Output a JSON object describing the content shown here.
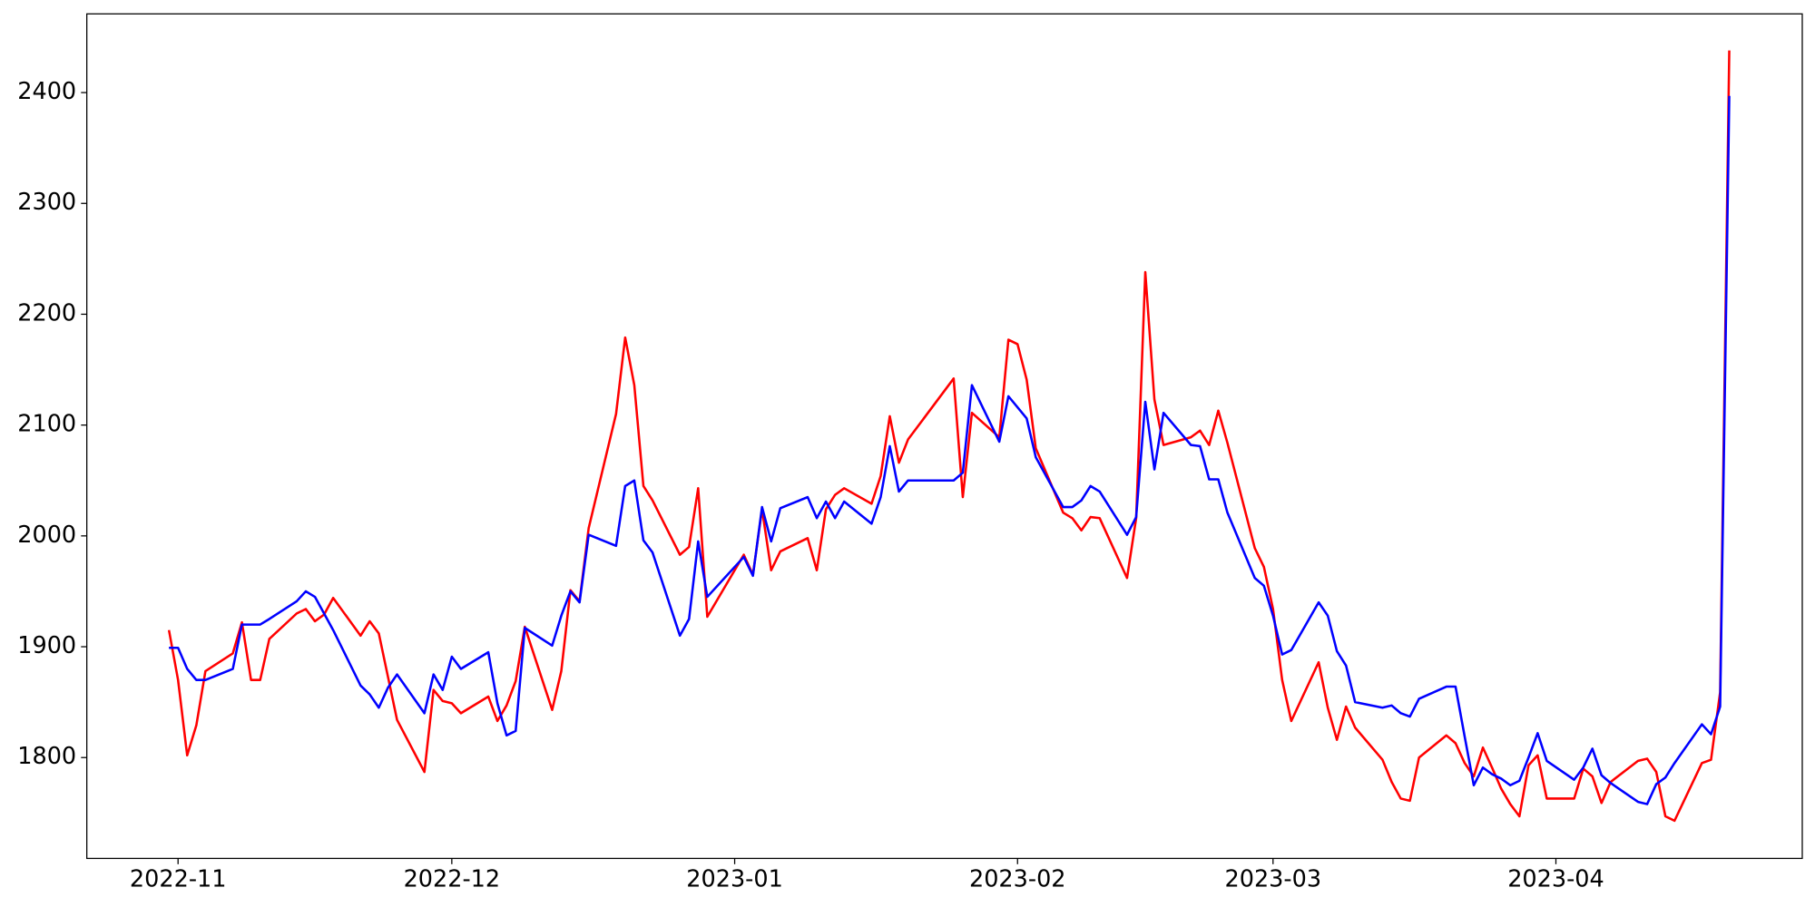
{
  "chart_data": {
    "type": "line",
    "x": [
      "2022-10-31",
      "2022-11-01",
      "2022-11-02",
      "2022-11-03",
      "2022-11-04",
      "2022-11-07",
      "2022-11-08",
      "2022-11-09",
      "2022-11-10",
      "2022-11-11",
      "2022-11-14",
      "2022-11-15",
      "2022-11-16",
      "2022-11-17",
      "2022-11-18",
      "2022-11-21",
      "2022-11-22",
      "2022-11-23",
      "2022-11-24",
      "2022-11-25",
      "2022-11-28",
      "2022-11-29",
      "2022-11-30",
      "2022-12-01",
      "2022-12-02",
      "2022-12-05",
      "2022-12-06",
      "2022-12-07",
      "2022-12-08",
      "2022-12-09",
      "2022-12-12",
      "2022-12-13",
      "2022-12-14",
      "2022-12-15",
      "2022-12-16",
      "2022-12-19",
      "2022-12-20",
      "2022-12-21",
      "2022-12-22",
      "2022-12-23",
      "2022-12-26",
      "2022-12-27",
      "2022-12-28",
      "2022-12-29",
      "2023-01-02",
      "2023-01-03",
      "2023-01-04",
      "2023-01-05",
      "2023-01-06",
      "2023-01-09",
      "2023-01-10",
      "2023-01-11",
      "2023-01-12",
      "2023-01-13",
      "2023-01-16",
      "2023-01-17",
      "2023-01-18",
      "2023-01-19",
      "2023-01-20",
      "2023-01-25",
      "2023-01-26",
      "2023-01-27",
      "2023-01-30",
      "2023-01-31",
      "2023-02-01",
      "2023-02-02",
      "2023-02-03",
      "2023-02-06",
      "2023-02-07",
      "2023-02-08",
      "2023-02-09",
      "2023-02-10",
      "2023-02-13",
      "2023-02-14",
      "2023-02-15",
      "2023-02-16",
      "2023-02-17",
      "2023-02-20",
      "2023-02-21",
      "2023-02-22",
      "2023-02-23",
      "2023-02-24",
      "2023-02-27",
      "2023-02-28",
      "2023-03-01",
      "2023-03-02",
      "2023-03-03",
      "2023-03-06",
      "2023-03-07",
      "2023-03-08",
      "2023-03-09",
      "2023-03-10",
      "2023-03-13",
      "2023-03-14",
      "2023-03-15",
      "2023-03-16",
      "2023-03-17",
      "2023-03-20",
      "2023-03-21",
      "2023-03-22",
      "2023-03-23",
      "2023-03-24",
      "2023-03-25",
      "2023-03-26",
      "2023-03-27",
      "2023-03-28",
      "2023-03-29",
      "2023-03-30",
      "2023-03-31",
      "2023-04-03",
      "2023-04-04",
      "2023-04-05",
      "2023-04-06",
      "2023-04-07",
      "2023-04-10",
      "2023-04-11",
      "2023-04-12",
      "2023-04-13",
      "2023-04-14",
      "2023-04-17",
      "2023-04-18",
      "2023-04-19",
      "2023-04-20"
    ],
    "series": [
      {
        "color": "#ff0000",
        "values": [
          1915,
          1870,
          1802,
          1829,
          1878,
          1894,
          1922,
          1870,
          1870,
          1907,
          1930,
          1934,
          1923,
          1929,
          1944,
          1910,
          1923,
          1912,
          1873,
          1834,
          1787,
          1861,
          1851,
          1849,
          1840,
          1855,
          1833,
          1847,
          1869,
          1918,
          1843,
          1878,
          1951,
          1941,
          2007,
          2110,
          2179,
          2136,
          2045,
          2032,
          1983,
          1990,
          2043,
          1927,
          1983,
          1965,
          2024,
          1969,
          1986,
          1998,
          1969,
          2024,
          2037,
          2043,
          2029,
          2054,
          2108,
          2066,
          2087,
          2142,
          2035,
          2111,
          2089,
          2177,
          2173,
          2141,
          2079,
          2021,
          2016,
          2005,
          2017,
          2016,
          1962,
          2016,
          2238,
          2123,
          2082,
          2089,
          2095,
          2082,
          2113,
          2084,
          1989,
          1972,
          1934,
          1870,
          1833,
          1886,
          1845,
          1816,
          1846,
          1827,
          1798,
          1778,
          1763,
          1761,
          1800,
          1820,
          1813,
          1795,
          1783,
          1809,
          1791,
          1772,
          1758,
          1747,
          1793,
          1802,
          1763,
          1763,
          1790,
          1783,
          1759,
          1778,
          1797,
          1799,
          1787,
          1747,
          1743,
          1795,
          1798,
          1859,
          2438
        ]
      },
      {
        "color": "#0000ff",
        "values": [
          1899,
          1899,
          1880,
          1870,
          1870,
          1880,
          1920,
          1920,
          1920,
          1925,
          1941,
          1950,
          1945,
          1930,
          1915,
          1865,
          1857,
          1845,
          1863,
          1875,
          1840,
          1875,
          1861,
          1891,
          1880,
          1895,
          1849,
          1820,
          1824,
          1917,
          1901,
          1928,
          1950,
          1940,
          2001,
          1991,
          2045,
          2050,
          1996,
          1985,
          1910,
          1925,
          1995,
          1945,
          1981,
          1964,
          2026,
          1995,
          2025,
          2035,
          2016,
          2031,
          2016,
          2031,
          2011,
          2035,
          2081,
          2040,
          2050,
          2050,
          2057,
          2136,
          2085,
          2126,
          2116,
          2106,
          2071,
          2026,
          2026,
          2032,
          2045,
          2040,
          2001,
          2017,
          2121,
          2060,
          2111,
          2082,
          2081,
          2051,
          2051,
          2021,
          1962,
          1955,
          1928,
          1893,
          1897,
          1940,
          1928,
          1896,
          1883,
          1850,
          1845,
          1847,
          1840,
          1837,
          1853,
          1864,
          1864,
          1819,
          1775,
          1791,
          1785,
          1781,
          1775,
          1779,
          1800,
          1822,
          1797,
          1780,
          1791,
          1808,
          1784,
          1777,
          1760,
          1758,
          1776,
          1782,
          1795,
          1830,
          1821,
          1846,
          2397
        ]
      }
    ],
    "xlim": [
      "2022-10-22",
      "2023-04-28"
    ],
    "xticks": [
      {
        "value": "2022-11-01",
        "label": "2022-11"
      },
      {
        "value": "2022-12-01",
        "label": "2022-12"
      },
      {
        "value": "2023-01-01",
        "label": "2023-01"
      },
      {
        "value": "2023-02-01",
        "label": "2023-02"
      },
      {
        "value": "2023-03-01",
        "label": "2023-03"
      },
      {
        "value": "2023-04-01",
        "label": "2023-04"
      }
    ],
    "ylim": [
      1709,
      2471
    ],
    "yticks": [
      1800,
      1900,
      2000,
      2100,
      2200,
      2300,
      2400
    ],
    "grid": false
  }
}
